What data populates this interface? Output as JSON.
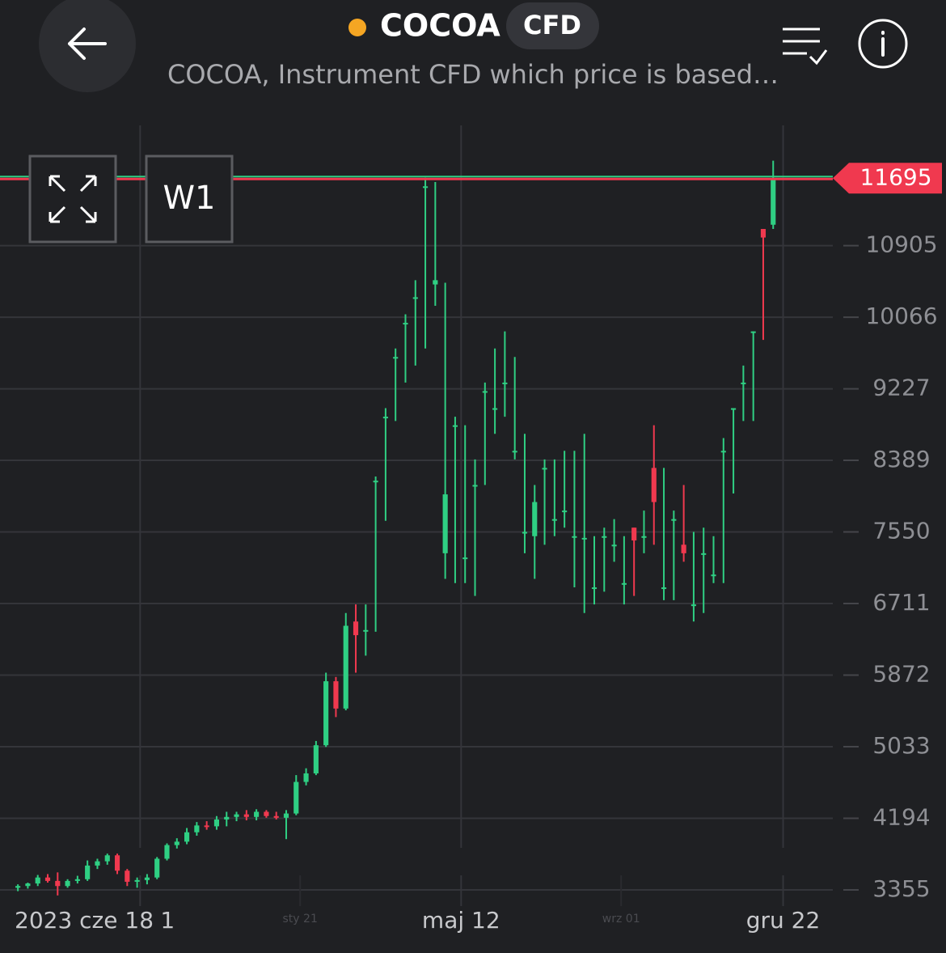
{
  "header": {
    "title": "COCOA",
    "badge": "CFD",
    "subtitle": "COCOA, Instrument CFD which price is based…"
  },
  "toolbar": {
    "timeframe": "W1"
  },
  "chart_data": {
    "type": "candlestick",
    "up_color": "#2fcf83",
    "down_color": "#f0394f",
    "open": [
      3380,
      3400,
      3430,
      3500,
      3460,
      3400,
      3460,
      3480,
      3640,
      3690,
      3760,
      3580,
      3450,
      3470,
      3500,
      3720,
      3880,
      3920,
      4030,
      4110,
      4100,
      4180,
      4210,
      4240,
      4210,
      4270,
      4220,
      4200,
      4250,
      4620,
      4720,
      5050,
      5800,
      5480,
      6500,
      6400,
      8150,
      8900,
      9600,
      10000,
      10300,
      11600,
      10450,
      7300,
      8800,
      7250,
      8100,
      9200,
      9000,
      9300,
      8500,
      7550,
      7500,
      8300,
      7700,
      7800,
      7500,
      7480,
      6900,
      7500,
      7400,
      6950,
      7600,
      7500,
      8300,
      6900,
      7700,
      7400,
      6700,
      7300,
      7050,
      8500,
      9000,
      9300,
      9900,
      11100,
      11150
    ],
    "high": [
      3420,
      3440,
      3530,
      3540,
      3560,
      3480,
      3520,
      3700,
      3720,
      3780,
      3780,
      3600,
      3500,
      3540,
      3740,
      3900,
      3960,
      4080,
      4150,
      4160,
      4220,
      4270,
      4270,
      4290,
      4300,
      4290,
      4270,
      4290,
      4700,
      4780,
      5100,
      5900,
      5850,
      6600,
      6700,
      6700,
      8200,
      9000,
      9700,
      10100,
      10500,
      11700,
      11650,
      10470,
      8900,
      8800,
      8400,
      9300,
      9700,
      9900,
      9600,
      8700,
      8100,
      8400,
      8400,
      8500,
      8500,
      8700,
      7500,
      7600,
      7700,
      7500,
      7600,
      7800,
      8800,
      8300,
      7800,
      8100,
      7550,
      7600,
      7500,
      8650,
      9000,
      9500,
      9900,
      11100,
      11900
    ],
    "low": [
      3340,
      3370,
      3400,
      3440,
      3290,
      3380,
      3430,
      3460,
      3600,
      3650,
      3540,
      3400,
      3380,
      3420,
      3480,
      3700,
      3840,
      3890,
      3990,
      4060,
      4060,
      4100,
      4160,
      4170,
      4170,
      4200,
      4180,
      3950,
      4230,
      4580,
      4700,
      5030,
      5380,
      5460,
      5900,
      6100,
      6380,
      7680,
      8850,
      9300,
      9500,
      9700,
      10200,
      7000,
      6950,
      6950,
      6800,
      8100,
      8700,
      8900,
      8400,
      7300,
      7000,
      7400,
      7500,
      7600,
      6900,
      6600,
      6700,
      6850,
      7200,
      6700,
      6800,
      7300,
      7400,
      6750,
      6750,
      7200,
      6500,
      6600,
      6950,
      6950,
      8000,
      8850,
      8850,
      9800,
      11100
    ],
    "close": [
      3400,
      3430,
      3500,
      3460,
      3400,
      3460,
      3480,
      3640,
      3690,
      3760,
      3580,
      3450,
      3470,
      3500,
      3720,
      3880,
      3920,
      4030,
      4110,
      4100,
      4180,
      4210,
      4240,
      4210,
      4270,
      4220,
      4200,
      4250,
      4620,
      4720,
      5050,
      5800,
      5480,
      6450,
      6340,
      6400,
      8150,
      8900,
      9600,
      10000,
      10300,
      11600,
      10500,
      7990,
      8800,
      7250,
      8100,
      9200,
      9000,
      9300,
      8500,
      7550,
      7900,
      8300,
      7700,
      7800,
      7500,
      7480,
      6900,
      7500,
      7400,
      6950,
      7450,
      7500,
      7900,
      6900,
      7700,
      7300,
      6700,
      7300,
      7050,
      8500,
      9000,
      9300,
      9900,
      11000,
      11695
    ],
    "last_price": 11695,
    "ylim": [
      3260,
      12314
    ],
    "yticks": [
      3355,
      4194,
      5033,
      5872,
      6711,
      7550,
      8389,
      9227,
      10066,
      10905
    ],
    "xlim": [
      -1.8,
      82
    ],
    "x_start_label": "2023 cze 18",
    "xticks": [
      {
        "value": 12.3,
        "label": "1"
      },
      {
        "value": 44.6,
        "label": "maj 12"
      },
      {
        "value": 77,
        "label": "gru 22"
      }
    ],
    "xticks_minor": [
      {
        "value": 28.4,
        "label": "sty 21"
      },
      {
        "value": 60.7,
        "label": "wrz 01"
      }
    ],
    "grid": true
  }
}
